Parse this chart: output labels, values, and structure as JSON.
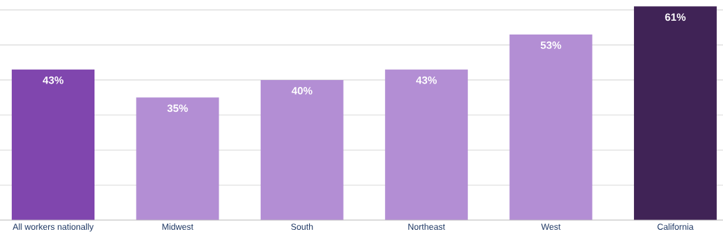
{
  "chart_data": {
    "type": "bar",
    "categories": [
      "All workers nationally",
      "Midwest",
      "South",
      "Northeast",
      "West",
      "California"
    ],
    "values": [
      43,
      35,
      40,
      43,
      53,
      61
    ],
    "colors": [
      "#8046ae",
      "#b38ed4",
      "#b38ed4",
      "#b38ed4",
      "#b38ed4",
      "#402356"
    ],
    "value_labels": [
      "43%",
      "35%",
      "40%",
      "43%",
      "53%",
      "61%"
    ],
    "yticks": [
      {
        "value": 0,
        "label": null
      },
      {
        "value": 10,
        "label": null
      },
      {
        "value": 20,
        "label": null
      },
      {
        "value": 30,
        "label": null
      },
      {
        "value": 40,
        "label": null
      },
      {
        "value": 50,
        "label": null
      },
      {
        "value": 60,
        "label": null
      }
    ],
    "tick_labels": "x",
    "grid": "y"
  }
}
